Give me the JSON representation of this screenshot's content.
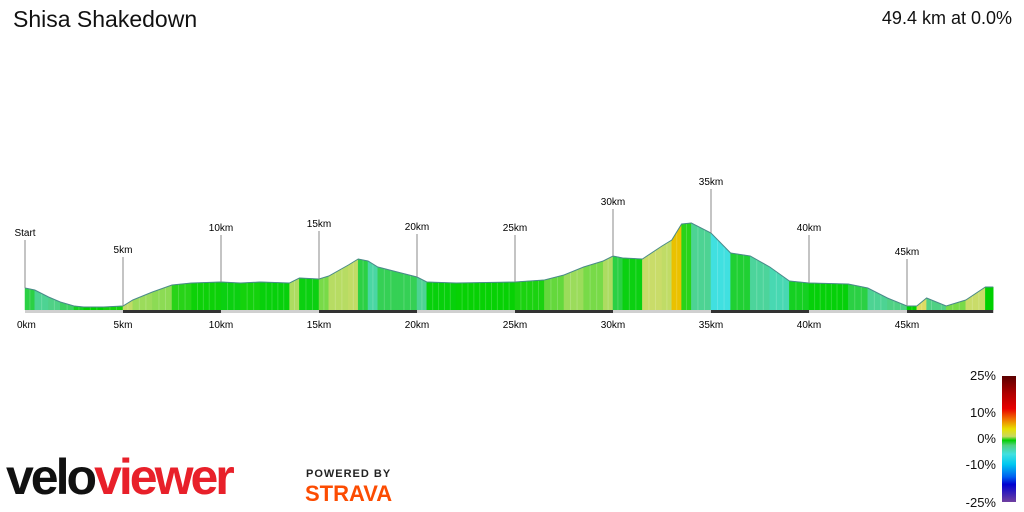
{
  "header": {
    "title": "Shisa Shakedown",
    "summary": "49.4 km at 0.0%"
  },
  "chart_data": {
    "type": "area",
    "title": "Shisa Shakedown",
    "xlabel": "",
    "ylabel": "",
    "x_unit": "km",
    "xlim": [
      0,
      49.4
    ],
    "x_ticks": [
      "0km",
      "5km",
      "10km",
      "15km",
      "20km",
      "25km",
      "30km",
      "35km",
      "40km",
      "45km"
    ],
    "markers": [
      "Start",
      "5km",
      "10km",
      "15km",
      "20km",
      "25km",
      "30km",
      "35km",
      "40km",
      "45km"
    ],
    "color_by": "gradient",
    "distance_km": [
      0,
      0.5,
      1.2,
      1.8,
      2.5,
      3,
      4,
      5,
      5.5,
      6.5,
      7.5,
      8.5,
      10,
      11,
      12,
      13.5,
      14,
      15,
      15.5,
      16.5,
      17,
      17.5,
      18,
      19,
      20,
      20.5,
      22,
      25,
      26.5,
      27.5,
      28.5,
      29.5,
      30,
      30.5,
      31.5,
      32.5,
      33,
      33.5,
      34,
      35,
      36,
      37,
      38,
      39,
      40,
      42,
      43,
      44,
      45,
      45.5,
      46,
      46.5,
      47,
      48,
      49,
      49.4
    ],
    "elevation": [
      44,
      40,
      26,
      16,
      8,
      6,
      6,
      8,
      20,
      36,
      50,
      54,
      56,
      54,
      56,
      54,
      64,
      62,
      68,
      90,
      102,
      98,
      86,
      76,
      66,
      56,
      54,
      56,
      60,
      70,
      86,
      98,
      108,
      104,
      102,
      128,
      140,
      172,
      174,
      154,
      114,
      108,
      86,
      58,
      54,
      52,
      44,
      24,
      8,
      8,
      24,
      16,
      8,
      20,
      46,
      46
    ],
    "legend": {
      "title": "",
      "labels": [
        "25%",
        "10%",
        "0%",
        "-10%",
        "-25%"
      ],
      "range": [
        -25,
        25
      ]
    }
  },
  "branding": {
    "logo_part1": "velo",
    "logo_part2": "viewer",
    "powered_by": "POWERED BY",
    "strava": "STRAVA",
    "strava_color": "#fc4c02",
    "logo_accent": "#e8202a"
  }
}
